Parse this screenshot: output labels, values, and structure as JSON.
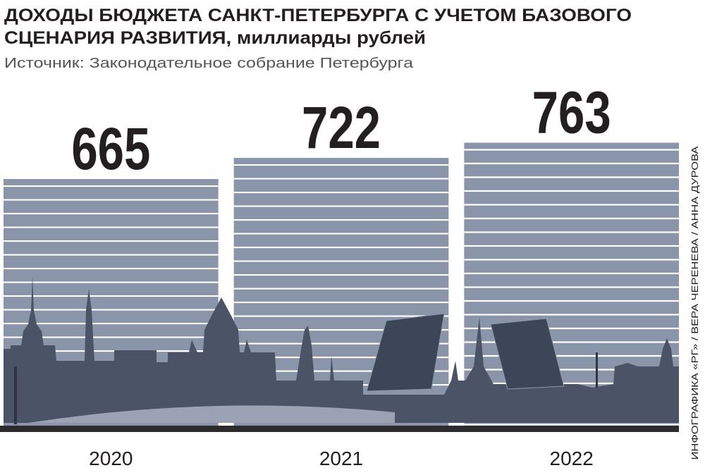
{
  "chart_data": {
    "type": "bar",
    "title": [
      "ДОХОДЫ БЮДЖЕТА САНКТ-ПЕТЕРБУРГА С УЧЕТОМ БАЗОВОГО",
      "СЦЕНАРИЯ РАЗВИТИЯ, миллиарды рублей"
    ],
    "subtitle": "Источник: Законодательное собрание Петербурга",
    "credit": "ИНФОГРАФИКА «РГ» / ВЕРА ЧЕРЕНЕВА / АННА ДУРОВА",
    "categories": [
      "2020",
      "2021",
      "2022"
    ],
    "values": [
      665,
      722,
      763
    ],
    "color": "#8b95aa",
    "ylim": [
      0,
      800
    ]
  }
}
